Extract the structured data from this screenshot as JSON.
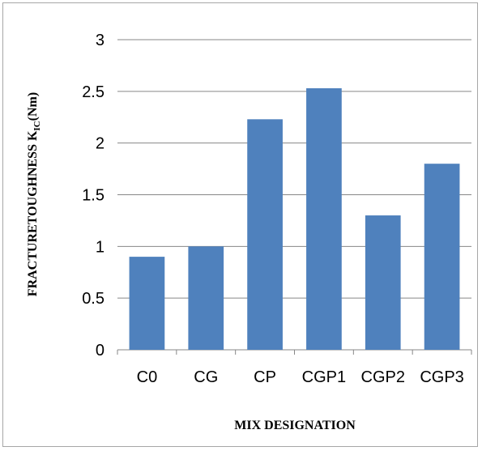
{
  "chart_data": {
    "type": "bar",
    "categories": [
      "C0",
      "CG",
      "CP",
      "CGP1",
      "CGP2",
      "CGP3"
    ],
    "values": [
      0.9,
      1.0,
      2.23,
      2.53,
      1.3,
      1.8
    ],
    "xlabel": "MIX DESIGNATION",
    "ylabel_main": "FRACTURETOUGHNESS K",
    "ylabel_subscript": "IC",
    "ylabel_suffix": "(Nm)",
    "ylim": [
      0,
      3
    ],
    "yticks": [
      "0",
      "0.5",
      "1",
      "1.5",
      "2",
      "2.5",
      "3"
    ],
    "grid": true,
    "bar_color": "#4f81bd",
    "grid_color": "#878787"
  }
}
